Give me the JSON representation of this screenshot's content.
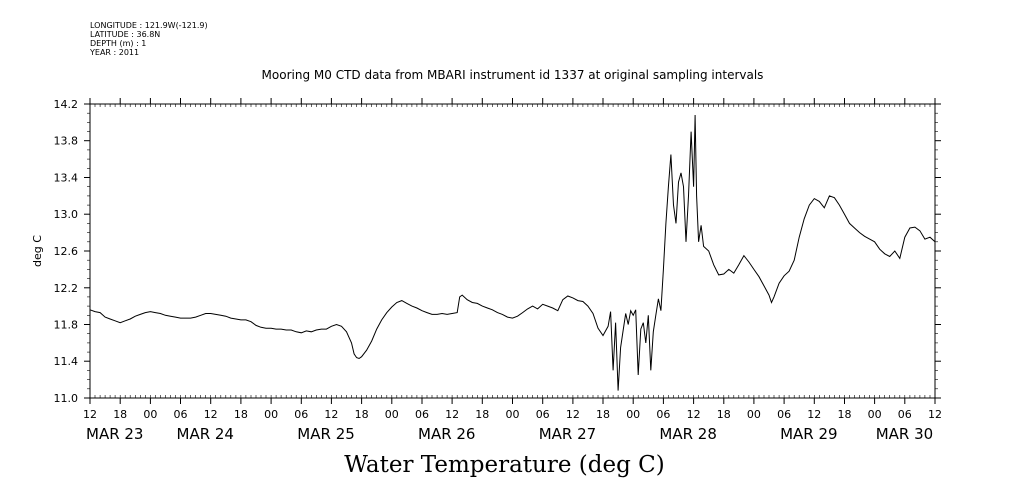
{
  "header": {
    "longitude": "LONGITUDE : 121.9W(-121.9)",
    "latitude": "LATITUDE : 36.8N",
    "depth": "DEPTH (m) : 1",
    "year": "YEAR : 2011"
  },
  "chart_data": {
    "type": "line",
    "title": "Mooring M0 CTD data from MBARI instrument id 1337 at original sampling intervals",
    "xlabel": "Water Temperature (deg C)",
    "ylabel": "deg C",
    "ylim": [
      11.0,
      14.2
    ],
    "y_ticks": [
      11.0,
      11.4,
      11.8,
      12.2,
      12.6,
      13.0,
      13.4,
      13.8,
      14.2
    ],
    "y_tick_labels": [
      "11.0",
      "11.4",
      "11.8",
      "12.2",
      "12.6",
      "13.0",
      "13.4",
      "13.8",
      "14.2"
    ],
    "x_range_hours": [
      0,
      168
    ],
    "x_hour_ticks": [
      {
        "h": 0,
        "label": "12"
      },
      {
        "h": 6,
        "label": "18"
      },
      {
        "h": 12,
        "label": "00"
      },
      {
        "h": 18,
        "label": "06"
      },
      {
        "h": 24,
        "label": "12"
      },
      {
        "h": 30,
        "label": "18"
      },
      {
        "h": 36,
        "label": "00"
      },
      {
        "h": 42,
        "label": "06"
      },
      {
        "h": 48,
        "label": "12"
      },
      {
        "h": 54,
        "label": "18"
      },
      {
        "h": 60,
        "label": "00"
      },
      {
        "h": 66,
        "label": "06"
      },
      {
        "h": 72,
        "label": "12"
      },
      {
        "h": 78,
        "label": "18"
      },
      {
        "h": 84,
        "label": "00"
      },
      {
        "h": 90,
        "label": "06"
      },
      {
        "h": 96,
        "label": "12"
      },
      {
        "h": 102,
        "label": "18"
      },
      {
        "h": 108,
        "label": "00"
      },
      {
        "h": 114,
        "label": "06"
      },
      {
        "h": 120,
        "label": "12"
      },
      {
        "h": 126,
        "label": "18"
      },
      {
        "h": 132,
        "label": "00"
      },
      {
        "h": 138,
        "label": "06"
      },
      {
        "h": 144,
        "label": "12"
      },
      {
        "h": 150,
        "label": "18"
      },
      {
        "h": 156,
        "label": "00"
      },
      {
        "h": 162,
        "label": "06"
      },
      {
        "h": 168,
        "label": "12"
      }
    ],
    "x_day_labels": [
      {
        "h": 0,
        "label": "MAR 23"
      },
      {
        "h": 18,
        "label": "MAR 24"
      },
      {
        "h": 42,
        "label": "MAR 25"
      },
      {
        "h": 66,
        "label": "MAR 26"
      },
      {
        "h": 90,
        "label": "MAR 27"
      },
      {
        "h": 114,
        "label": "MAR 28"
      },
      {
        "h": 138,
        "label": "MAR 29"
      },
      {
        "h": 157,
        "label": "MAR 30"
      }
    ],
    "grid": false,
    "series": [
      {
        "values": [
          [
            0,
            11.96
          ],
          [
            1,
            11.94
          ],
          [
            2,
            11.93
          ],
          [
            3,
            11.88
          ],
          [
            4,
            11.86
          ],
          [
            5,
            11.84
          ],
          [
            6,
            11.82
          ],
          [
            7,
            11.84
          ],
          [
            8,
            11.86
          ],
          [
            9,
            11.89
          ],
          [
            10,
            11.91
          ],
          [
            11,
            11.93
          ],
          [
            12,
            11.94
          ],
          [
            13,
            11.93
          ],
          [
            14,
            11.92
          ],
          [
            15,
            11.9
          ],
          [
            16,
            11.89
          ],
          [
            17,
            11.88
          ],
          [
            18,
            11.87
          ],
          [
            19,
            11.87
          ],
          [
            20,
            11.87
          ],
          [
            21,
            11.88
          ],
          [
            22,
            11.9
          ],
          [
            23,
            11.92
          ],
          [
            24,
            11.92
          ],
          [
            25,
            11.91
          ],
          [
            26,
            11.9
          ],
          [
            27,
            11.89
          ],
          [
            28,
            11.87
          ],
          [
            29,
            11.86
          ],
          [
            30,
            11.85
          ],
          [
            31,
            11.85
          ],
          [
            32,
            11.83
          ],
          [
            33,
            11.79
          ],
          [
            34,
            11.77
          ],
          [
            35,
            11.76
          ],
          [
            36,
            11.76
          ],
          [
            37,
            11.75
          ],
          [
            38,
            11.75
          ],
          [
            39,
            11.74
          ],
          [
            40,
            11.74
          ],
          [
            41,
            11.72
          ],
          [
            42,
            11.71
          ],
          [
            43,
            11.73
          ],
          [
            44,
            11.72
          ],
          [
            45,
            11.74
          ],
          [
            46,
            11.75
          ],
          [
            47,
            11.75
          ],
          [
            48,
            11.78
          ],
          [
            49,
            11.8
          ],
          [
            50,
            11.78
          ],
          [
            51,
            11.72
          ],
          [
            52,
            11.6
          ],
          [
            52.5,
            11.48
          ],
          [
            53,
            11.44
          ],
          [
            53.5,
            11.43
          ],
          [
            54,
            11.45
          ],
          [
            55,
            11.52
          ],
          [
            56,
            11.62
          ],
          [
            57,
            11.75
          ],
          [
            58,
            11.85
          ],
          [
            59,
            11.93
          ],
          [
            60,
            11.99
          ],
          [
            61,
            12.04
          ],
          [
            62,
            12.06
          ],
          [
            63,
            12.03
          ],
          [
            64,
            12.0
          ],
          [
            65,
            11.98
          ],
          [
            66,
            11.95
          ],
          [
            67,
            11.93
          ],
          [
            68,
            11.91
          ],
          [
            69,
            11.91
          ],
          [
            70,
            11.92
          ],
          [
            71,
            11.91
          ],
          [
            72,
            11.92
          ],
          [
            73,
            11.93
          ],
          [
            73.5,
            12.1
          ],
          [
            74,
            12.12
          ],
          [
            75,
            12.07
          ],
          [
            76,
            12.04
          ],
          [
            77,
            12.03
          ],
          [
            78,
            12.0
          ],
          [
            79,
            11.98
          ],
          [
            80,
            11.96
          ],
          [
            81,
            11.93
          ],
          [
            82,
            11.91
          ],
          [
            83,
            11.88
          ],
          [
            84,
            11.87
          ],
          [
            85,
            11.89
          ],
          [
            86,
            11.93
          ],
          [
            87,
            11.97
          ],
          [
            88,
            12.0
          ],
          [
            89,
            11.97
          ],
          [
            90,
            12.02
          ],
          [
            91,
            12.0
          ],
          [
            92,
            11.98
          ],
          [
            93,
            11.95
          ],
          [
            94,
            12.07
          ],
          [
            95,
            12.11
          ],
          [
            96,
            12.09
          ],
          [
            97,
            12.06
          ],
          [
            98,
            12.05
          ],
          [
            99,
            12.0
          ],
          [
            100,
            11.92
          ],
          [
            101,
            11.76
          ],
          [
            102,
            11.68
          ],
          [
            103,
            11.78
          ],
          [
            103.5,
            11.94
          ],
          [
            104,
            11.3
          ],
          [
            104.5,
            11.82
          ],
          [
            105,
            11.08
          ],
          [
            105.5,
            11.55
          ],
          [
            106,
            11.74
          ],
          [
            106.5,
            11.92
          ],
          [
            107,
            11.8
          ],
          [
            107.5,
            11.95
          ],
          [
            108,
            11.9
          ],
          [
            108.5,
            11.96
          ],
          [
            109,
            11.25
          ],
          [
            109.5,
            11.75
          ],
          [
            110,
            11.82
          ],
          [
            110.5,
            11.6
          ],
          [
            111,
            11.9
          ],
          [
            111.5,
            11.3
          ],
          [
            112,
            11.72
          ],
          [
            112.5,
            11.9
          ],
          [
            113,
            12.08
          ],
          [
            113.5,
            11.95
          ],
          [
            114,
            12.4
          ],
          [
            114.5,
            12.9
          ],
          [
            115,
            13.3
          ],
          [
            115.5,
            13.65
          ],
          [
            116,
            13.1
          ],
          [
            116.5,
            12.9
          ],
          [
            117,
            13.35
          ],
          [
            117.5,
            13.45
          ],
          [
            118,
            13.3
          ],
          [
            118.5,
            12.7
          ],
          [
            119,
            13.2
          ],
          [
            119.5,
            13.9
          ],
          [
            120,
            13.3
          ],
          [
            120.3,
            14.08
          ],
          [
            120.6,
            13.2
          ],
          [
            121,
            12.7
          ],
          [
            121.5,
            12.88
          ],
          [
            122,
            12.65
          ],
          [
            123,
            12.6
          ],
          [
            124,
            12.45
          ],
          [
            125,
            12.34
          ],
          [
            126,
            12.35
          ],
          [
            127,
            12.4
          ],
          [
            128,
            12.36
          ],
          [
            129,
            12.45
          ],
          [
            130,
            12.55
          ],
          [
            131,
            12.48
          ],
          [
            132,
            12.4
          ],
          [
            133,
            12.32
          ],
          [
            134,
            12.22
          ],
          [
            135,
            12.12
          ],
          [
            135.5,
            12.04
          ],
          [
            136,
            12.1
          ],
          [
            137,
            12.25
          ],
          [
            138,
            12.33
          ],
          [
            139,
            12.38
          ],
          [
            140,
            12.5
          ],
          [
            141,
            12.75
          ],
          [
            142,
            12.95
          ],
          [
            143,
            13.1
          ],
          [
            144,
            13.17
          ],
          [
            145,
            13.14
          ],
          [
            146,
            13.07
          ],
          [
            147,
            13.2
          ],
          [
            148,
            13.18
          ],
          [
            149,
            13.1
          ],
          [
            150,
            13.0
          ],
          [
            151,
            12.9
          ],
          [
            152,
            12.85
          ],
          [
            153,
            12.8
          ],
          [
            154,
            12.76
          ],
          [
            155,
            12.73
          ],
          [
            156,
            12.7
          ],
          [
            157,
            12.62
          ],
          [
            158,
            12.57
          ],
          [
            159,
            12.54
          ],
          [
            160,
            12.6
          ],
          [
            161,
            12.52
          ],
          [
            162,
            12.75
          ],
          [
            163,
            12.85
          ],
          [
            164,
            12.86
          ],
          [
            165,
            12.82
          ],
          [
            166,
            12.73
          ],
          [
            167,
            12.75
          ],
          [
            168,
            12.7
          ]
        ]
      }
    ]
  }
}
